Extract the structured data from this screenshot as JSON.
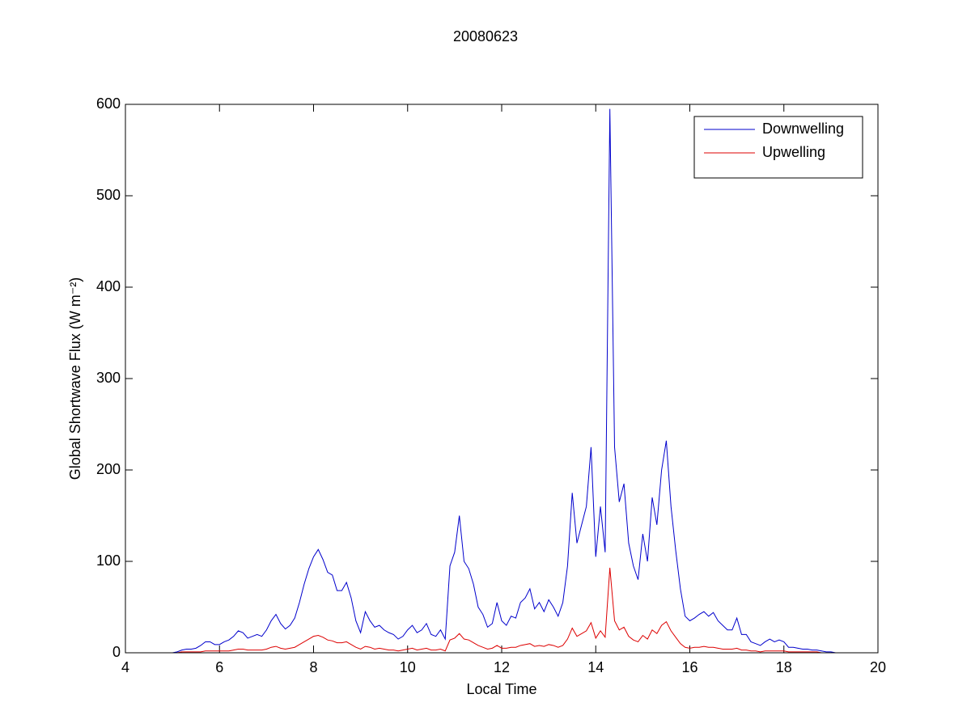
{
  "chart_data": {
    "type": "line",
    "title": "20080623",
    "xlabel": "Local Time",
    "ylabel": "Global Shortwave Flux (W m⁻²)",
    "x": [
      4,
      5.0,
      5.1,
      5.2,
      5.3,
      5.4,
      5.5,
      5.6,
      5.7,
      5.8,
      5.9,
      6.0,
      6.1,
      6.2,
      6.3,
      6.4,
      6.5,
      6.6,
      6.7,
      6.8,
      6.9,
      7.0,
      7.1,
      7.2,
      7.3,
      7.4,
      7.5,
      7.6,
      7.7,
      7.8,
      7.9,
      8.0,
      8.1,
      8.2,
      8.3,
      8.4,
      8.5,
      8.6,
      8.7,
      8.8,
      8.9,
      9.0,
      9.1,
      9.2,
      9.3,
      9.4,
      9.5,
      9.6,
      9.7,
      9.8,
      9.9,
      10.0,
      10.1,
      10.2,
      10.3,
      10.4,
      10.5,
      10.6,
      10.7,
      10.8,
      10.9,
      11.0,
      11.1,
      11.2,
      11.3,
      11.4,
      11.5,
      11.6,
      11.7,
      11.8,
      11.9,
      12.0,
      12.1,
      12.2,
      12.3,
      12.4,
      12.5,
      12.6,
      12.7,
      12.8,
      12.9,
      13.0,
      13.1,
      13.2,
      13.3,
      13.4,
      13.5,
      13.6,
      13.7,
      13.8,
      13.9,
      14.0,
      14.1,
      14.2,
      14.3,
      14.4,
      14.5,
      14.6,
      14.7,
      14.8,
      14.9,
      15.0,
      15.1,
      15.2,
      15.3,
      15.4,
      15.5,
      15.6,
      15.7,
      15.8,
      15.9,
      16.0,
      16.1,
      16.2,
      16.3,
      16.4,
      16.5,
      16.6,
      16.7,
      16.8,
      16.9,
      17.0,
      17.1,
      17.2,
      17.3,
      17.4,
      17.5,
      17.6,
      17.7,
      17.8,
      17.9,
      18.0,
      18.1,
      18.2,
      18.3,
      18.4,
      18.5,
      18.6,
      18.7,
      18.8,
      18.9,
      19.0,
      19.1,
      19.2,
      20
    ],
    "series": [
      {
        "name": "Downwelling",
        "color": "#0000cc",
        "values": [
          0,
          0,
          1,
          3,
          4,
          4,
          5,
          8,
          12,
          12,
          9,
          9,
          12,
          14,
          18,
          24,
          22,
          16,
          18,
          20,
          18,
          25,
          35,
          42,
          32,
          26,
          30,
          38,
          55,
          75,
          92,
          105,
          113,
          102,
          88,
          85,
          68,
          68,
          77,
          60,
          35,
          22,
          45,
          35,
          28,
          30,
          25,
          22,
          20,
          15,
          18,
          25,
          30,
          22,
          25,
          32,
          20,
          18,
          25,
          15,
          95,
          110,
          150,
          100,
          92,
          75,
          50,
          42,
          28,
          32,
          55,
          35,
          30,
          40,
          38,
          55,
          60,
          70,
          48,
          55,
          45,
          58,
          50,
          40,
          55,
          95,
          175,
          120,
          140,
          160,
          225,
          105,
          160,
          110,
          595,
          225,
          165,
          185,
          120,
          95,
          80,
          130,
          100,
          170,
          140,
          200,
          232,
          160,
          112,
          70,
          40,
          35,
          38,
          42,
          45,
          40,
          44,
          35,
          30,
          25,
          25,
          38,
          20,
          20,
          12,
          10,
          8,
          12,
          15,
          12,
          14,
          12,
          6,
          6,
          5,
          4,
          4,
          3,
          3,
          2,
          1,
          1,
          0,
          0,
          0
        ]
      },
      {
        "name": "Upwelling",
        "color": "#dd0000",
        "values": [
          0,
          0,
          0,
          1,
          1,
          1,
          1,
          1,
          2,
          2,
          2,
          2,
          2,
          2,
          3,
          4,
          4,
          3,
          3,
          3,
          3,
          4,
          6,
          7,
          5,
          4,
          5,
          6,
          9,
          12,
          15,
          18,
          19,
          17,
          14,
          13,
          11,
          11,
          12,
          9,
          6,
          4,
          7,
          6,
          4,
          5,
          4,
          3,
          3,
          2,
          3,
          4,
          5,
          3,
          4,
          5,
          3,
          3,
          4,
          2,
          14,
          16,
          21,
          15,
          14,
          11,
          8,
          6,
          4,
          5,
          8,
          5,
          5,
          6,
          6,
          8,
          9,
          10,
          7,
          8,
          7,
          9,
          8,
          6,
          8,
          15,
          27,
          18,
          21,
          24,
          33,
          16,
          24,
          17,
          93,
          35,
          25,
          28,
          18,
          14,
          12,
          19,
          15,
          25,
          21,
          30,
          34,
          24,
          17,
          10,
          6,
          5,
          6,
          6,
          7,
          6,
          6,
          5,
          4,
          4,
          4,
          5,
          3,
          3,
          2,
          2,
          1,
          2,
          2,
          2,
          2,
          2,
          1,
          1,
          1,
          1,
          1,
          1,
          1,
          0,
          0,
          0,
          0,
          0,
          0
        ]
      }
    ],
    "xlim": [
      4,
      20
    ],
    "xticks": [
      4,
      6,
      8,
      10,
      12,
      14,
      16,
      18,
      20
    ],
    "ylim": [
      0,
      600
    ],
    "yticks": [
      0,
      100,
      200,
      300,
      400,
      500,
      600
    ],
    "legend": "upper right"
  }
}
